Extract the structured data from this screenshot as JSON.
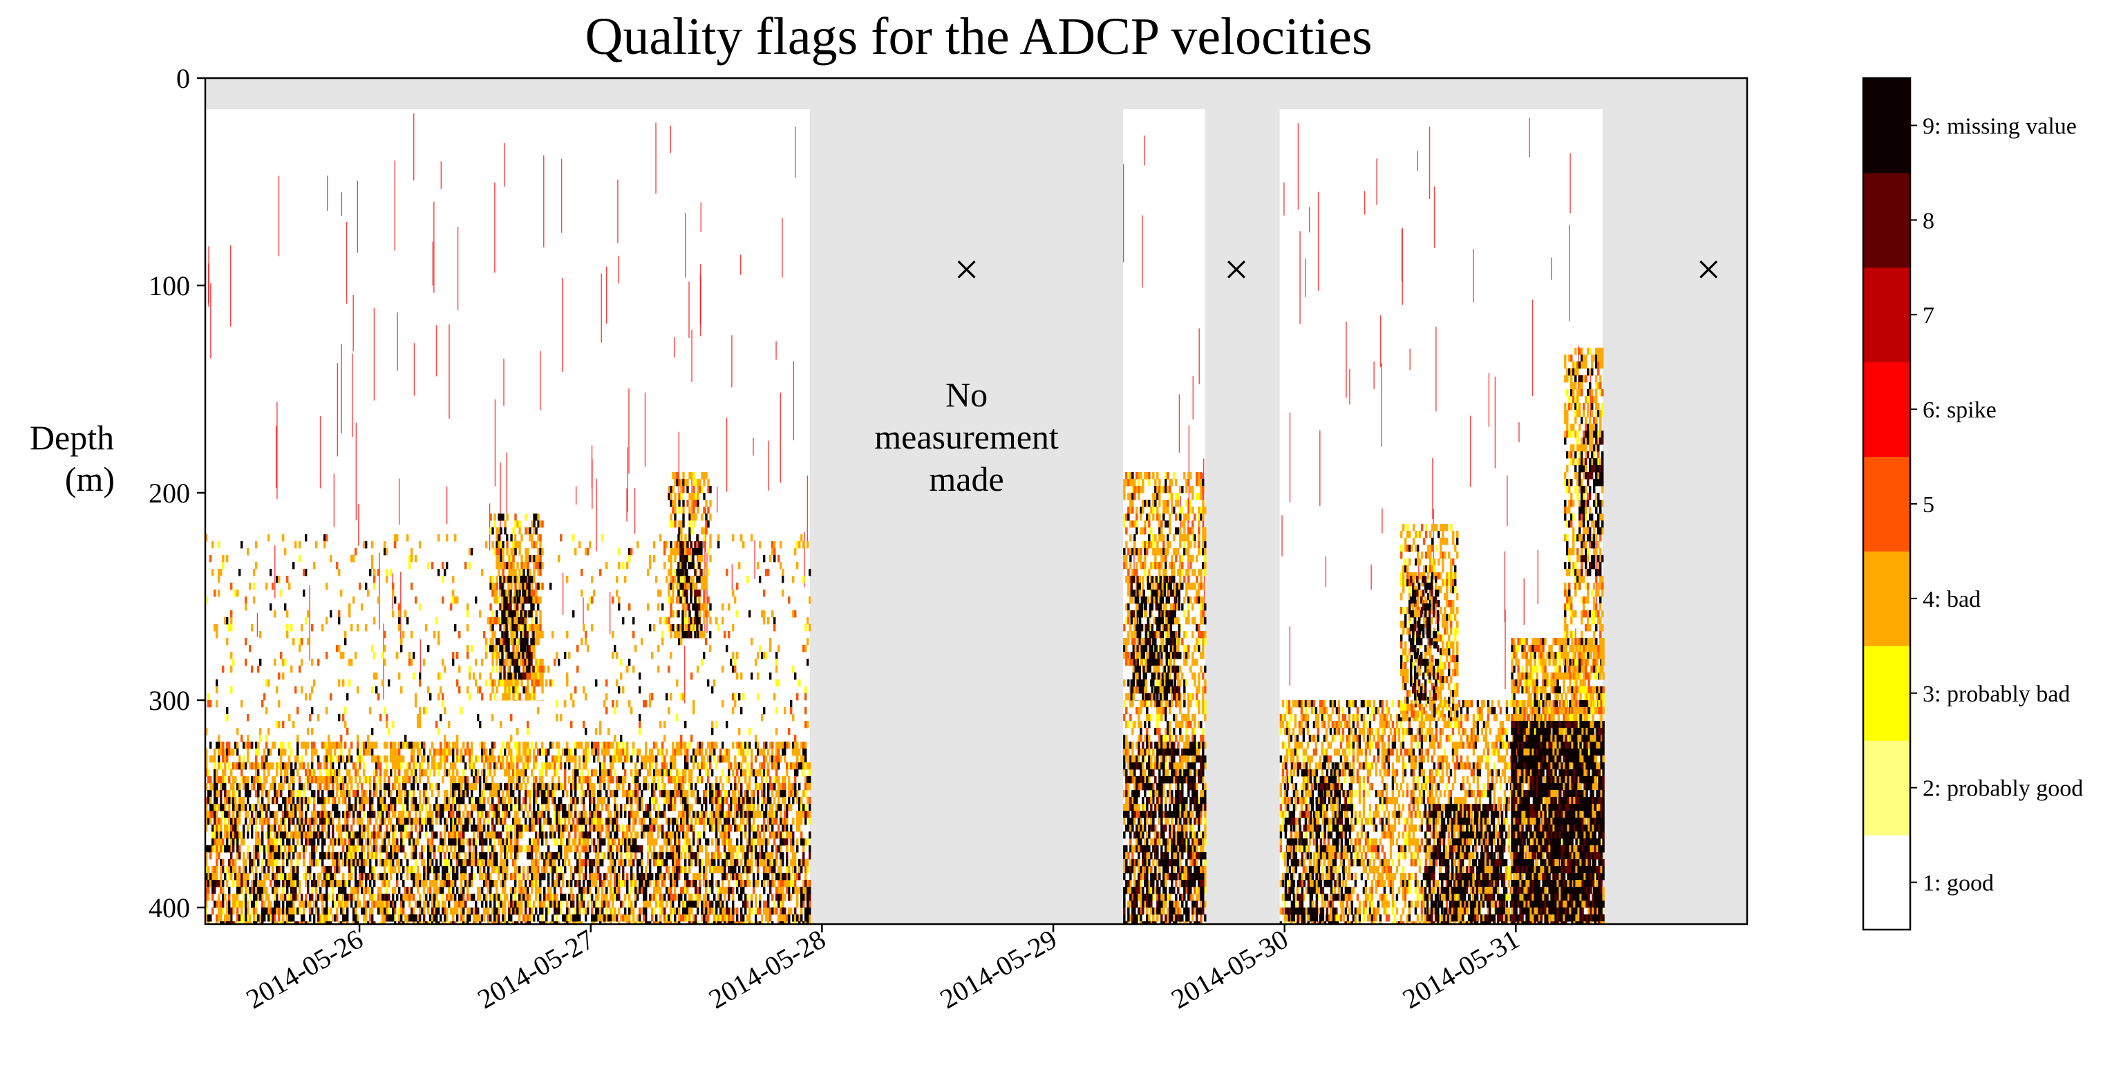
{
  "chart_data": {
    "type": "heatmap",
    "title": "Quality flags for the ADCP velocities",
    "ylabel_line1": "Depth",
    "ylabel_line2": "(m)",
    "xlim": [
      "2014-05-25T08:00",
      "2014-06-01T00:00"
    ],
    "ylim": [
      408,
      0
    ],
    "y_inverted": true,
    "yticks": [
      0,
      100,
      200,
      300,
      400
    ],
    "xticks": [
      "2014-05-26",
      "2014-05-27",
      "2014-05-28",
      "2014-05-29",
      "2014-05-30",
      "2014-05-31"
    ],
    "grid": false,
    "colors": {
      "no_data_background": "#e5e5e5",
      "bad_line": "#ff0000"
    },
    "top_depth_of_profiles_m": 15,
    "segments": [
      {
        "start": "2014-05-25T08:00",
        "end": "2014-05-27T22:45"
      },
      {
        "start": "2014-05-29T07:15",
        "end": "2014-05-29T15:45"
      },
      {
        "start": "2014-05-29T23:30",
        "end": "2014-05-31T09:00"
      }
    ],
    "gap_markers": [
      {
        "time": "2014-05-28T15:00",
        "depth": 92,
        "symbol": "×"
      },
      {
        "time": "2014-05-29T19:00",
        "depth": 92,
        "symbol": "×"
      },
      {
        "time": "2014-05-31T20:00",
        "depth": 92,
        "symbol": "×"
      }
    ],
    "annotation": {
      "time": "2014-05-28T15:00",
      "lines": [
        "No",
        "measurement",
        "made"
      ]
    },
    "flag_regions": [
      {
        "start": "2014-05-25T08:00",
        "end": "2014-05-27T22:45",
        "depth_from": 320,
        "depth_to": 408,
        "level": 4,
        "density": 0.55
      },
      {
        "start": "2014-05-25T08:00",
        "end": "2014-05-27T22:45",
        "depth_from": 340,
        "depth_to": 408,
        "level": 9,
        "density": 0.25
      },
      {
        "start": "2014-05-25T08:00",
        "end": "2014-05-27T22:45",
        "depth_from": 220,
        "depth_to": 320,
        "level": 4,
        "density": 0.08
      },
      {
        "start": "2014-05-26T13:30",
        "end": "2014-05-26T19:00",
        "depth_from": 210,
        "depth_to": 300,
        "level": 4,
        "density": 0.5
      },
      {
        "start": "2014-05-26T14:30",
        "end": "2014-05-26T18:00",
        "depth_from": 240,
        "depth_to": 290,
        "level": 9,
        "density": 0.6
      },
      {
        "start": "2014-05-27T08:00",
        "end": "2014-05-27T12:30",
        "depth_from": 190,
        "depth_to": 270,
        "level": 4,
        "density": 0.45
      },
      {
        "start": "2014-05-27T09:00",
        "end": "2014-05-27T11:30",
        "depth_from": 220,
        "depth_to": 270,
        "level": 9,
        "density": 0.5
      },
      {
        "start": "2014-05-29T07:15",
        "end": "2014-05-29T15:45",
        "depth_from": 190,
        "depth_to": 408,
        "level": 4,
        "density": 0.5
      },
      {
        "start": "2014-05-29T08:00",
        "end": "2014-05-29T13:00",
        "depth_from": 240,
        "depth_to": 300,
        "level": 9,
        "density": 0.55
      },
      {
        "start": "2014-05-29T07:15",
        "end": "2014-05-29T15:45",
        "depth_from": 320,
        "depth_to": 408,
        "level": 9,
        "density": 0.55
      },
      {
        "start": "2014-05-29T23:30",
        "end": "2014-05-31T09:00",
        "depth_from": 300,
        "depth_to": 408,
        "level": 4,
        "density": 0.5
      },
      {
        "start": "2014-05-30T00:00",
        "end": "2014-05-30T07:00",
        "depth_from": 330,
        "depth_to": 408,
        "level": 9,
        "density": 0.45
      },
      {
        "start": "2014-05-30T12:00",
        "end": "2014-05-30T18:00",
        "depth_from": 215,
        "depth_to": 310,
        "level": 4,
        "density": 0.5
      },
      {
        "start": "2014-05-30T13:00",
        "end": "2014-05-30T16:00",
        "depth_from": 240,
        "depth_to": 300,
        "level": 9,
        "density": 0.55
      },
      {
        "start": "2014-05-30T14:30",
        "end": "2014-05-30T23:00",
        "depth_from": 350,
        "depth_to": 408,
        "level": 9,
        "density": 0.7
      },
      {
        "start": "2014-05-30T23:30",
        "end": "2014-05-31T09:00",
        "depth_from": 270,
        "depth_to": 320,
        "level": 4,
        "density": 0.7
      },
      {
        "start": "2014-05-30T23:30",
        "end": "2014-05-31T09:00",
        "depth_from": 310,
        "depth_to": 408,
        "level": 9,
        "density": 0.92
      },
      {
        "start": "2014-05-31T05:00",
        "end": "2014-05-31T09:00",
        "depth_from": 130,
        "depth_to": 290,
        "level": 4,
        "density": 0.5
      },
      {
        "start": "2014-05-31T06:30",
        "end": "2014-05-31T09:00",
        "depth_from": 170,
        "depth_to": 240,
        "level": 9,
        "density": 0.45
      }
    ],
    "colorbar": [
      {
        "value": 1,
        "label": "1: good",
        "color": "#ffffff"
      },
      {
        "value": 2,
        "label": "2: probably good",
        "color": "#ffff80"
      },
      {
        "value": 3,
        "label": "3: probably bad",
        "color": "#ffff00"
      },
      {
        "value": 4,
        "label": "4: bad",
        "color": "#ffaa00"
      },
      {
        "value": 5,
        "label": "5",
        "color": "#ff5500"
      },
      {
        "value": 6,
        "label": "6: spike",
        "color": "#ff0000"
      },
      {
        "value": 7,
        "label": "7",
        "color": "#bf0000"
      },
      {
        "value": 8,
        "label": "8",
        "color": "#600000"
      },
      {
        "value": 9,
        "label": "9: missing value",
        "color": "#0d0000"
      }
    ]
  }
}
